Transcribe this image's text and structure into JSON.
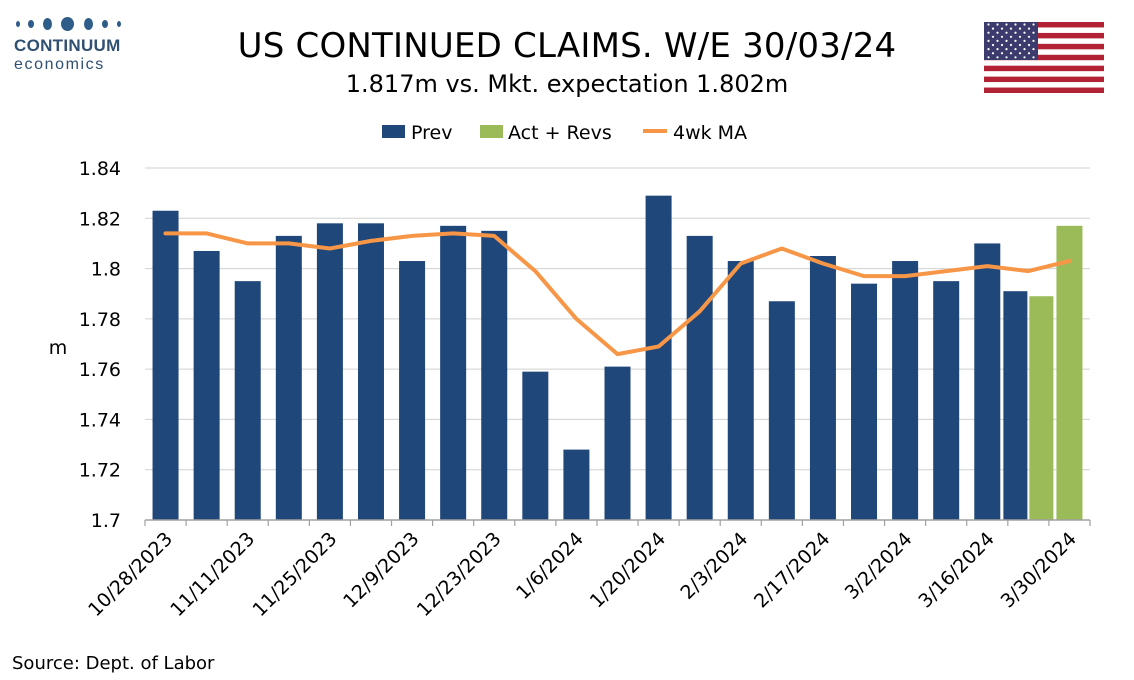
{
  "logo": {
    "brand": "CONTINUUM",
    "sub": "economics"
  },
  "title": "US CONTINUED CLAIMS. W/E 30/03/24",
  "subtitle": "1.817m vs. Mkt. expectation 1.802m",
  "source": "Source: Dept. of Labor",
  "flag_icon": "us-flag-icon",
  "colors": {
    "prev": "#1f477a",
    "act": "#9bbb59",
    "ma": "#f79646",
    "grid": "#d0d0d0",
    "axis": "#a0a0a0"
  },
  "chart_data": {
    "type": "bar",
    "x_type": "date",
    "dates": [
      "10/28/2023",
      "11/4/2023",
      "11/11/2023",
      "11/18/2023",
      "11/25/2023",
      "12/2/2023",
      "12/9/2023",
      "12/16/2023",
      "12/23/2023",
      "12/30/2023",
      "1/6/2024",
      "1/13/2024",
      "1/20/2024",
      "1/27/2024",
      "2/3/2024",
      "2/10/2024",
      "2/17/2024",
      "2/24/2024",
      "3/2/2024",
      "3/9/2024",
      "3/16/2024",
      "3/23/2024",
      "3/30/2024"
    ],
    "tick_labels": [
      "10/28/2023",
      "11/11/2023",
      "11/25/2023",
      "12/9/2023",
      "12/23/2023",
      "1/6/2024",
      "1/20/2024",
      "2/3/2024",
      "2/17/2024",
      "3/2/2024",
      "3/16/2024",
      "3/30/2024"
    ],
    "series": [
      {
        "name": "Prev",
        "type": "bar",
        "values": [
          1.823,
          1.807,
          1.795,
          1.813,
          1.818,
          1.818,
          1.803,
          1.817,
          1.815,
          1.759,
          1.728,
          1.761,
          1.829,
          1.813,
          1.803,
          1.787,
          1.805,
          1.794,
          1.803,
          1.795,
          1.81,
          1.791,
          null
        ]
      },
      {
        "name": "Act + Revs",
        "type": "bar",
        "values": [
          null,
          null,
          null,
          null,
          null,
          null,
          null,
          null,
          null,
          null,
          null,
          null,
          null,
          null,
          null,
          null,
          null,
          null,
          null,
          null,
          null,
          1.789,
          1.817
        ]
      },
      {
        "name": "4wk MA",
        "type": "line",
        "values": [
          1.814,
          1.814,
          1.81,
          1.81,
          1.808,
          1.811,
          1.813,
          1.814,
          1.813,
          1.799,
          1.78,
          1.766,
          1.769,
          1.783,
          1.802,
          1.808,
          1.802,
          1.797,
          1.797,
          1.799,
          1.801,
          1.799,
          1.803
        ]
      }
    ],
    "ylabel": "m",
    "ylim": [
      1.7,
      1.84
    ],
    "yticks": [
      "1.7",
      "1.72",
      "1.74",
      "1.76",
      "1.78",
      "1.8",
      "1.82",
      "1.84"
    ],
    "grid": true,
    "legend_position": "top-center"
  }
}
